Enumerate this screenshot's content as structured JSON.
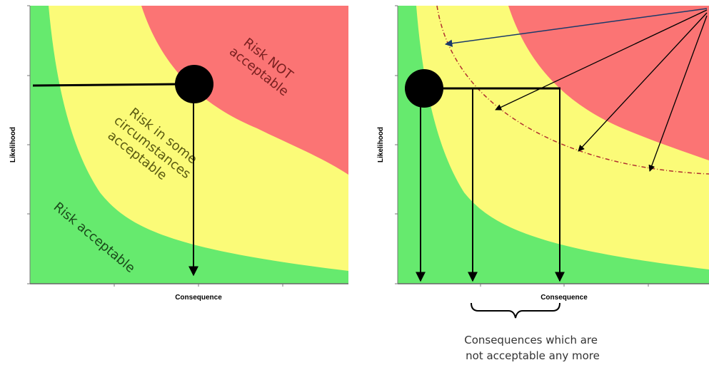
{
  "colors": {
    "green": "#66ea6e",
    "yellow": "#fbfb78",
    "red": "#fb7474",
    "dashed_curve": "#b03030",
    "blue_arrow": "#1a3a6a"
  },
  "left_chart": {
    "ylabel": "Likelihood",
    "xlabel": "Consequence",
    "zones": {
      "red_label_line1": "Risk NOT",
      "red_label_line2": "acceptable",
      "yellow_label_line1": "Risk in some",
      "yellow_label_line2": "circumstances",
      "yellow_label_line3": "acceptable",
      "green_label": "Risk acceptable"
    }
  },
  "right_chart": {
    "ylabel": "Likelihood",
    "xlabel": "Consequence",
    "caption_line1": "Consequences which are",
    "caption_line2": "not acceptable any more"
  }
}
